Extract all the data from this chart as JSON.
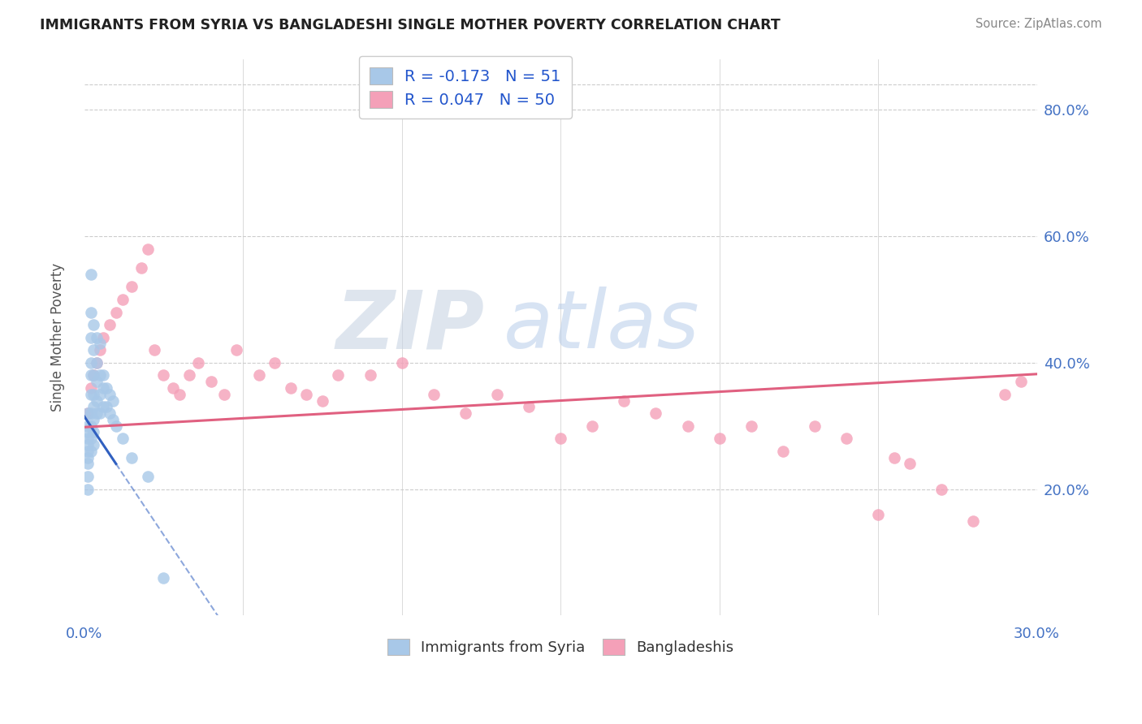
{
  "title": "IMMIGRANTS FROM SYRIA VS BANGLADESHI SINGLE MOTHER POVERTY CORRELATION CHART",
  "source": "Source: ZipAtlas.com",
  "ylabel": "Single Mother Poverty",
  "R_syria": -0.173,
  "N_syria": 51,
  "R_bangla": 0.047,
  "N_bangla": 50,
  "legend_label_syria": "Immigrants from Syria",
  "legend_label_bangla": "Bangladeshis",
  "color_syria": "#a8c8e8",
  "color_bangla": "#f4a0b8",
  "line_color_syria": "#3060c0",
  "line_color_bangla": "#e06080",
  "watermark_zip": "ZIP",
  "watermark_atlas": "atlas",
  "xlim": [
    0.0,
    0.3
  ],
  "ylim": [
    0.0,
    0.88
  ],
  "yticks": [
    0.2,
    0.4,
    0.6,
    0.8
  ],
  "ytick_labels": [
    "20.0%",
    "40.0%",
    "60.0%",
    "80.0%"
  ],
  "syria_x": [
    0.001,
    0.001,
    0.001,
    0.001,
    0.001,
    0.001,
    0.001,
    0.001,
    0.001,
    0.001,
    0.002,
    0.002,
    0.002,
    0.002,
    0.002,
    0.002,
    0.002,
    0.002,
    0.002,
    0.002,
    0.003,
    0.003,
    0.003,
    0.003,
    0.003,
    0.003,
    0.003,
    0.003,
    0.004,
    0.004,
    0.004,
    0.004,
    0.004,
    0.005,
    0.005,
    0.005,
    0.005,
    0.006,
    0.006,
    0.006,
    0.007,
    0.007,
    0.008,
    0.008,
    0.009,
    0.009,
    0.01,
    0.012,
    0.015,
    0.02,
    0.025
  ],
  "syria_y": [
    0.32,
    0.3,
    0.29,
    0.28,
    0.27,
    0.26,
    0.25,
    0.24,
    0.22,
    0.2,
    0.54,
    0.48,
    0.44,
    0.4,
    0.38,
    0.35,
    0.32,
    0.3,
    0.28,
    0.26,
    0.46,
    0.42,
    0.38,
    0.35,
    0.33,
    0.31,
    0.29,
    0.27,
    0.44,
    0.4,
    0.37,
    0.34,
    0.32,
    0.43,
    0.38,
    0.35,
    0.32,
    0.38,
    0.36,
    0.33,
    0.36,
    0.33,
    0.35,
    0.32,
    0.34,
    0.31,
    0.3,
    0.28,
    0.25,
    0.22,
    0.06
  ],
  "bangla_x": [
    0.001,
    0.002,
    0.003,
    0.004,
    0.005,
    0.006,
    0.008,
    0.01,
    0.012,
    0.015,
    0.018,
    0.02,
    0.022,
    0.025,
    0.028,
    0.03,
    0.033,
    0.036,
    0.04,
    0.044,
    0.048,
    0.055,
    0.06,
    0.065,
    0.07,
    0.075,
    0.08,
    0.09,
    0.1,
    0.11,
    0.12,
    0.13,
    0.14,
    0.15,
    0.16,
    0.17,
    0.18,
    0.19,
    0.2,
    0.21,
    0.22,
    0.23,
    0.24,
    0.25,
    0.255,
    0.26,
    0.27,
    0.28,
    0.29,
    0.295
  ],
  "bangla_y": [
    0.32,
    0.36,
    0.38,
    0.4,
    0.42,
    0.44,
    0.46,
    0.48,
    0.5,
    0.52,
    0.55,
    0.58,
    0.42,
    0.38,
    0.36,
    0.35,
    0.38,
    0.4,
    0.37,
    0.35,
    0.42,
    0.38,
    0.4,
    0.36,
    0.35,
    0.34,
    0.38,
    0.38,
    0.4,
    0.35,
    0.32,
    0.35,
    0.33,
    0.28,
    0.3,
    0.34,
    0.32,
    0.3,
    0.28,
    0.3,
    0.26,
    0.3,
    0.28,
    0.16,
    0.25,
    0.24,
    0.2,
    0.15,
    0.35,
    0.37
  ]
}
